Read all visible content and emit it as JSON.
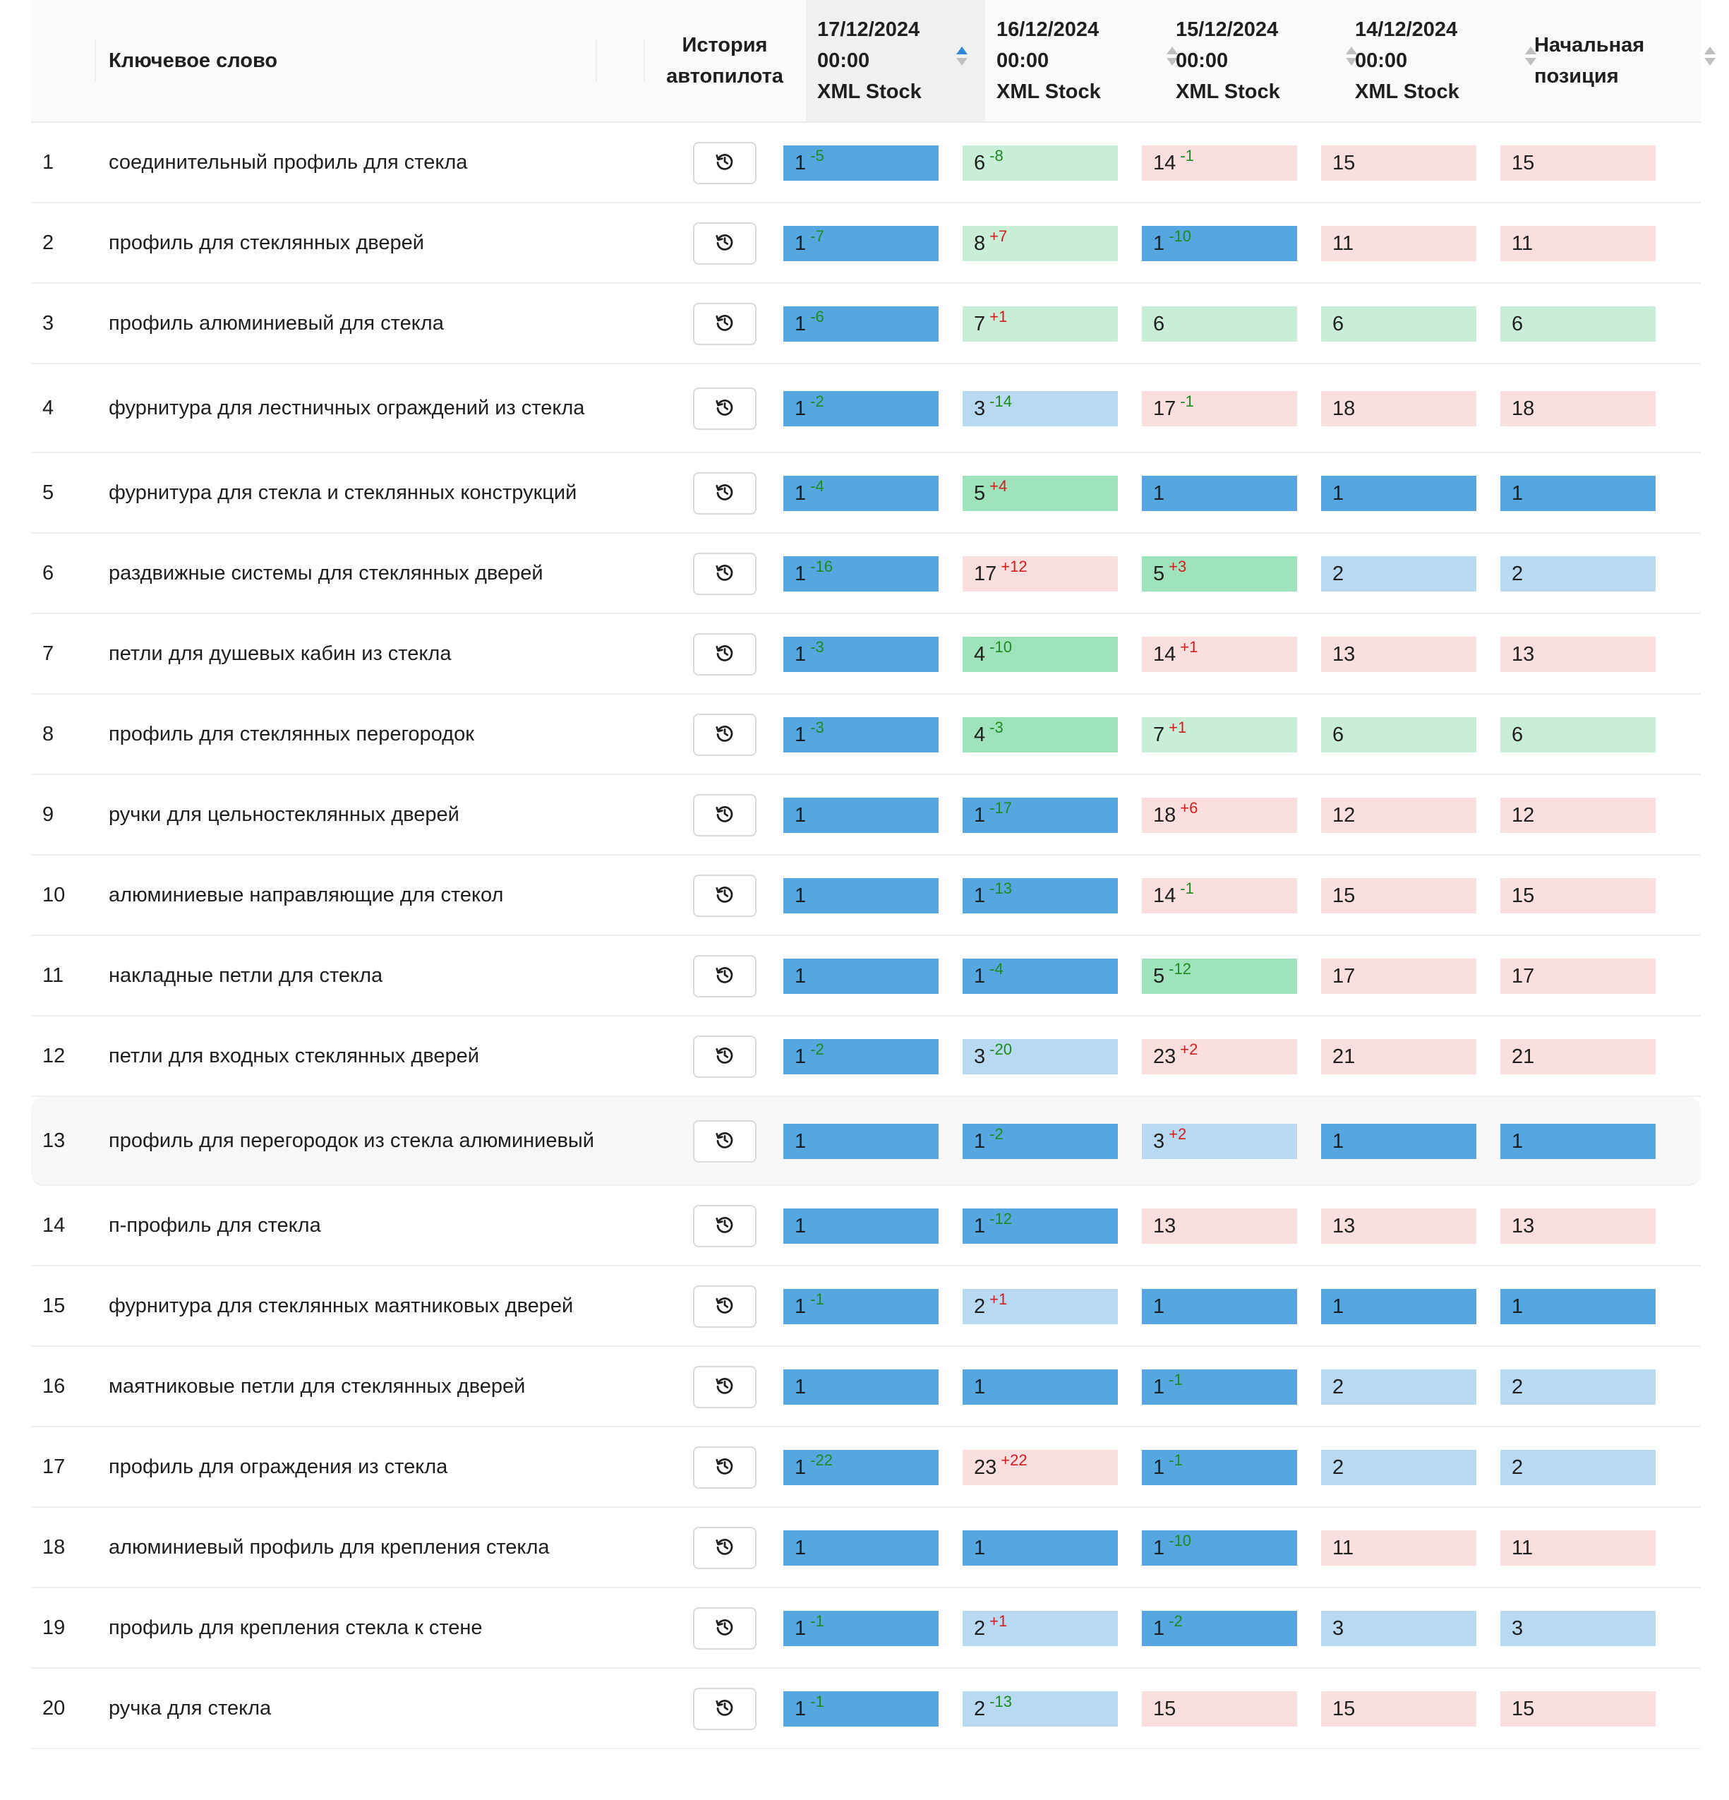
{
  "header": {
    "keyword": "Ключевое слово",
    "history": [
      "История",
      "автопилота"
    ],
    "dates": [
      {
        "line1": "17/12/2024",
        "line2": "00:00",
        "line3": "XML Stock"
      },
      {
        "line1": "16/12/2024",
        "line2": "00:00",
        "line3": "XML Stock"
      },
      {
        "line1": "15/12/2024",
        "line2": "00:00",
        "line3": "XML Stock"
      },
      {
        "line1": "14/12/2024",
        "line2": "00:00",
        "line3": "XML Stock"
      }
    ],
    "start": [
      "Начальная",
      "позиция"
    ]
  },
  "colors": {
    "top_position": "#56a7df",
    "top3_position": "#b7d9f2",
    "top5_position": "#9fe3bd",
    "top10_position": "#c8eed8",
    "low_position": "#fbdfdf",
    "improvement": "#1e8a1e",
    "decline": "#d41c1c"
  },
  "icons": {
    "history": "history-clock-icon",
    "sort": "sort-arrows-icon"
  },
  "rows": [
    {
      "n": "1",
      "kw": "соединительный профиль для стекла",
      "p": [
        [
          "1",
          "-5",
          "b1"
        ],
        [
          "6",
          "-8",
          "g2"
        ],
        [
          "14",
          "-1",
          "r1"
        ],
        [
          "15",
          "",
          "r1"
        ],
        [
          "15",
          "",
          "r1"
        ]
      ]
    },
    {
      "n": "2",
      "kw": "профиль для стеклянных дверей",
      "p": [
        [
          "1",
          "-7",
          "b1"
        ],
        [
          "8",
          "+7",
          "g2"
        ],
        [
          "1",
          "-10",
          "b1"
        ],
        [
          "11",
          "",
          "r1"
        ],
        [
          "11",
          "",
          "r1"
        ]
      ]
    },
    {
      "n": "3",
      "kw": "профиль алюминиевый для стекла",
      "p": [
        [
          "1",
          "-6",
          "b1"
        ],
        [
          "7",
          "+1",
          "g2"
        ],
        [
          "6",
          "",
          "g2"
        ],
        [
          "6",
          "",
          "g2"
        ],
        [
          "6",
          "",
          "g2"
        ]
      ]
    },
    {
      "n": "4",
      "kw": "фурнитура для лестничных ограждений из стекла",
      "tall": true,
      "p": [
        [
          "1",
          "-2",
          "b1"
        ],
        [
          "3",
          "-14",
          "b2"
        ],
        [
          "17",
          "-1",
          "r1"
        ],
        [
          "18",
          "",
          "r1"
        ],
        [
          "18",
          "",
          "r1"
        ]
      ]
    },
    {
      "n": "5",
      "kw": "фурнитура для стекла и стеклянных конструкций",
      "p": [
        [
          "1",
          "-4",
          "b1"
        ],
        [
          "5",
          "+4",
          "g1"
        ],
        [
          "1",
          "",
          "b1"
        ],
        [
          "1",
          "",
          "b1"
        ],
        [
          "1",
          "",
          "b1"
        ]
      ]
    },
    {
      "n": "6",
      "kw": "раздвижные системы для стеклянных дверей",
      "p": [
        [
          "1",
          "-16",
          "b1"
        ],
        [
          "17",
          "+12",
          "r1"
        ],
        [
          "5",
          "+3",
          "g1"
        ],
        [
          "2",
          "",
          "b2"
        ],
        [
          "2",
          "",
          "b2"
        ]
      ]
    },
    {
      "n": "7",
      "kw": "петли для душевых кабин из стекла",
      "p": [
        [
          "1",
          "-3",
          "b1"
        ],
        [
          "4",
          "-10",
          "g1"
        ],
        [
          "14",
          "+1",
          "r1"
        ],
        [
          "13",
          "",
          "r1"
        ],
        [
          "13",
          "",
          "r1"
        ]
      ]
    },
    {
      "n": "8",
      "kw": "профиль для стеклянных перегородок",
      "p": [
        [
          "1",
          "-3",
          "b1"
        ],
        [
          "4",
          "-3",
          "g1"
        ],
        [
          "7",
          "+1",
          "g2"
        ],
        [
          "6",
          "",
          "g2"
        ],
        [
          "6",
          "",
          "g2"
        ]
      ]
    },
    {
      "n": "9",
      "kw": "ручки для цельностеклянных дверей",
      "p": [
        [
          "1",
          "",
          "b1"
        ],
        [
          "1",
          "-17",
          "b1"
        ],
        [
          "18",
          "+6",
          "r1"
        ],
        [
          "12",
          "",
          "r1"
        ],
        [
          "12",
          "",
          "r1"
        ]
      ]
    },
    {
      "n": "10",
      "kw": "алюминиевые направляющие для стекол",
      "p": [
        [
          "1",
          "",
          "b1"
        ],
        [
          "1",
          "-13",
          "b1"
        ],
        [
          "14",
          "-1",
          "r1"
        ],
        [
          "15",
          "",
          "r1"
        ],
        [
          "15",
          "",
          "r1"
        ]
      ]
    },
    {
      "n": "11",
      "kw": "накладные петли для стекла",
      "p": [
        [
          "1",
          "",
          "b1"
        ],
        [
          "1",
          "-4",
          "b1"
        ],
        [
          "5",
          "-12",
          "g1"
        ],
        [
          "17",
          "",
          "r1"
        ],
        [
          "17",
          "",
          "r1"
        ]
      ]
    },
    {
      "n": "12",
      "kw": "петли для входных стеклянных дверей",
      "p": [
        [
          "1",
          "-2",
          "b1"
        ],
        [
          "3",
          "-20",
          "b2"
        ],
        [
          "23",
          "+2",
          "r1"
        ],
        [
          "21",
          "",
          "r1"
        ],
        [
          "21",
          "",
          "r1"
        ]
      ]
    },
    {
      "n": "13",
      "kw": "профиль для перегородок из стекла алюминиевый",
      "tall": true,
      "hl": true,
      "p": [
        [
          "1",
          "",
          "b1"
        ],
        [
          "1",
          "-2",
          "b1"
        ],
        [
          "3",
          "+2",
          "b2"
        ],
        [
          "1",
          "",
          "b1"
        ],
        [
          "1",
          "",
          "b1"
        ]
      ]
    },
    {
      "n": "14",
      "kw": "п-профиль для стекла",
      "p": [
        [
          "1",
          "",
          "b1"
        ],
        [
          "1",
          "-12",
          "b1"
        ],
        [
          "13",
          "",
          "r1"
        ],
        [
          "13",
          "",
          "r1"
        ],
        [
          "13",
          "",
          "r1"
        ]
      ]
    },
    {
      "n": "15",
      "kw": "фурнитура для стеклянных маятниковых дверей",
      "p": [
        [
          "1",
          "-1",
          "b1"
        ],
        [
          "2",
          "+1",
          "b2"
        ],
        [
          "1",
          "",
          "b1"
        ],
        [
          "1",
          "",
          "b1"
        ],
        [
          "1",
          "",
          "b1"
        ]
      ]
    },
    {
      "n": "16",
      "kw": "маятниковые петли для стеклянных дверей",
      "p": [
        [
          "1",
          "",
          "b1"
        ],
        [
          "1",
          "",
          "b1"
        ],
        [
          "1",
          "-1",
          "b1"
        ],
        [
          "2",
          "",
          "b2"
        ],
        [
          "2",
          "",
          "b2"
        ]
      ]
    },
    {
      "n": "17",
      "kw": "профиль для ограждения из стекла",
      "p": [
        [
          "1",
          "-22",
          "b1"
        ],
        [
          "23",
          "+22",
          "r1"
        ],
        [
          "1",
          "-1",
          "b1"
        ],
        [
          "2",
          "",
          "b2"
        ],
        [
          "2",
          "",
          "b2"
        ]
      ]
    },
    {
      "n": "18",
      "kw": "алюминиевый профиль для крепления стекла",
      "p": [
        [
          "1",
          "",
          "b1"
        ],
        [
          "1",
          "",
          "b1"
        ],
        [
          "1",
          "-10",
          "b1"
        ],
        [
          "11",
          "",
          "r1"
        ],
        [
          "11",
          "",
          "r1"
        ]
      ]
    },
    {
      "n": "19",
      "kw": "профиль для крепления стекла к стене",
      "p": [
        [
          "1",
          "-1",
          "b1"
        ],
        [
          "2",
          "+1",
          "b2"
        ],
        [
          "1",
          "-2",
          "b1"
        ],
        [
          "3",
          "",
          "b2"
        ],
        [
          "3",
          "",
          "b2"
        ]
      ]
    },
    {
      "n": "20",
      "kw": "ручка для стекла",
      "p": [
        [
          "1",
          "-1",
          "b1"
        ],
        [
          "2",
          "-13",
          "b2"
        ],
        [
          "15",
          "",
          "r1"
        ],
        [
          "15",
          "",
          "r1"
        ],
        [
          "15",
          "",
          "r1"
        ]
      ]
    }
  ]
}
